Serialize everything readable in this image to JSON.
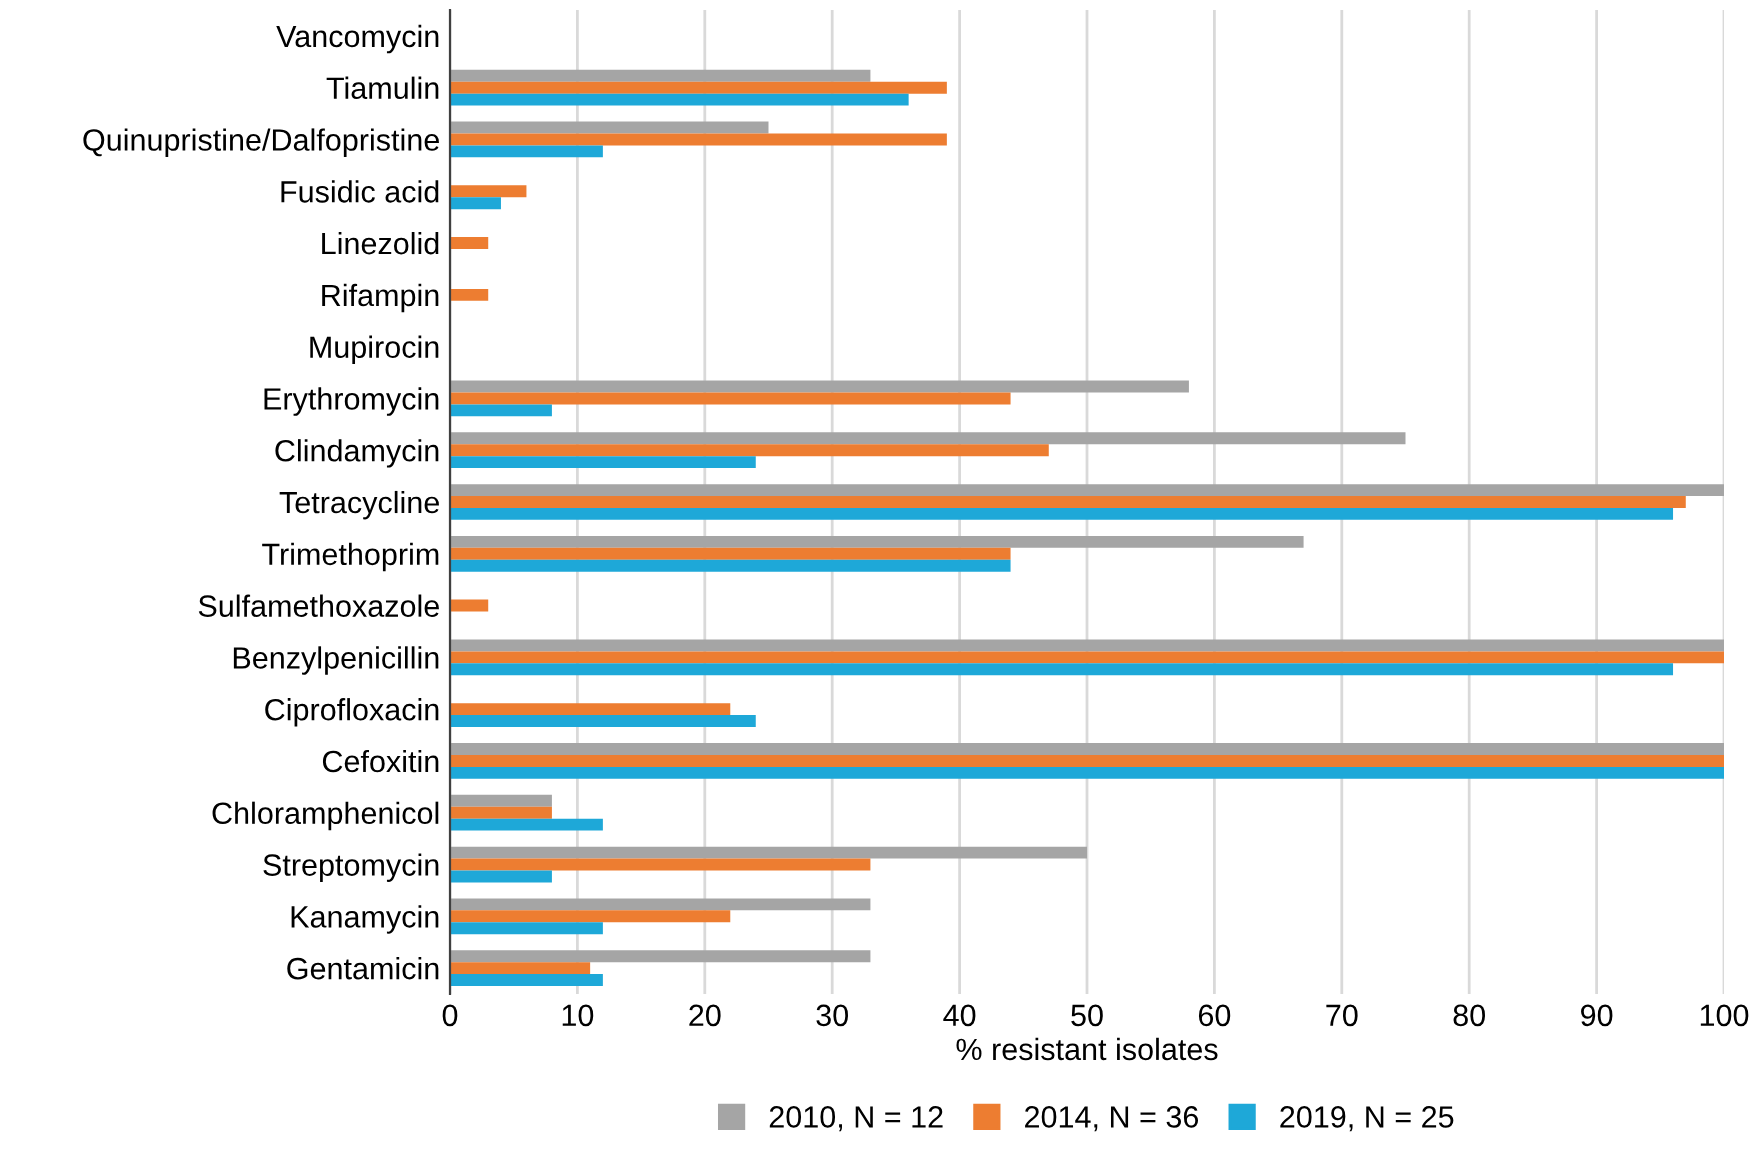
{
  "chart_data": {
    "type": "bar",
    "orientation": "horizontal",
    "xlabel": "% resistant isolates",
    "categories": [
      "Vancomycin",
      "Tiamulin",
      "Quinupristine/Dalfopristine",
      "Fusidic acid",
      "Linezolid",
      "Rifampin",
      "Mupirocin",
      "Erythromycin",
      "Clindamycin",
      "Tetracycline",
      "Trimethoprim",
      "Sulfamethoxazole",
      "Benzylpenicillin",
      "Ciprofloxacin",
      "Cefoxitin",
      "Chloramphenicol",
      "Streptomycin",
      "Kanamycin",
      "Gentamicin"
    ],
    "series": [
      {
        "name": "2010, N = 12",
        "color": "#a5a5a5",
        "values": [
          0,
          33,
          25,
          0,
          0,
          0,
          0,
          58,
          75,
          100,
          67,
          0,
          100,
          0,
          100,
          8,
          50,
          33,
          33
        ]
      },
      {
        "name": "2014, N = 36",
        "color": "#ed7d31",
        "values": [
          0,
          39,
          39,
          6,
          3,
          3,
          0,
          44,
          47,
          97,
          44,
          3,
          100,
          22,
          100,
          8,
          33,
          22,
          11
        ]
      },
      {
        "name": "2019, N = 25",
        "color": "#1ea8d8",
        "values": [
          0,
          36,
          12,
          4,
          0,
          0,
          0,
          8,
          24,
          96,
          44,
          0,
          96,
          24,
          100,
          12,
          8,
          12,
          12
        ]
      }
    ],
    "xlim": [
      0,
      100
    ],
    "xticks": [
      0,
      10,
      20,
      30,
      40,
      50,
      60,
      70,
      80,
      90,
      100
    ],
    "grid": "x",
    "legend": "bottom"
  }
}
